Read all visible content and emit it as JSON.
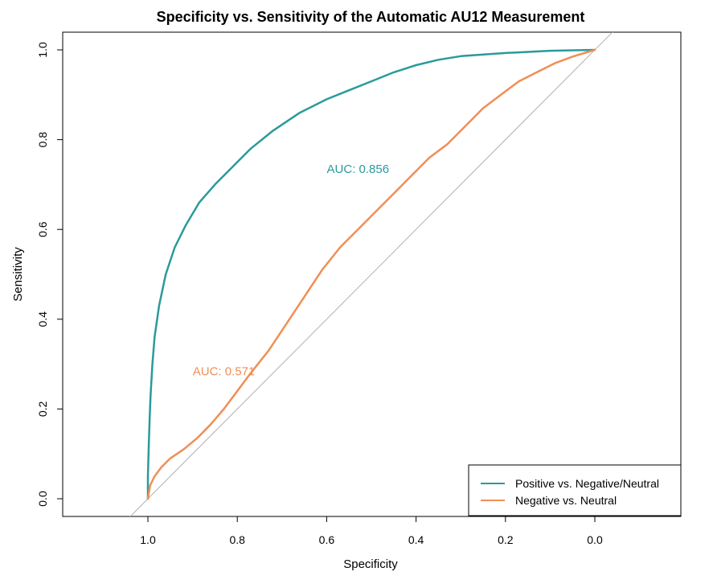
{
  "chart_data": {
    "type": "line",
    "title": "Specificity vs. Sensitivity of the Automatic AU12 Measurement",
    "xlabel": "Specificity",
    "ylabel": "Sensitivity",
    "xlim": [
      1.2,
      -0.19
    ],
    "ylim": [
      -0.04,
      1.04
    ],
    "x_reversed": true,
    "x_ticks": [
      "1.0",
      "0.8",
      "0.6",
      "0.4",
      "0.2",
      "0.0"
    ],
    "x_tick_values": [
      1.0,
      0.8,
      0.6,
      0.4,
      0.2,
      0.0
    ],
    "y_ticks": [
      "0.0",
      "0.2",
      "0.4",
      "0.6",
      "0.8",
      "1.0"
    ],
    "y_tick_values": [
      0.0,
      0.2,
      0.4,
      0.6,
      0.8,
      1.0
    ],
    "grid": false,
    "legend_position": "bottom-right",
    "reference_line": {
      "color": "#b0b0b0",
      "x": [
        1.04,
        -0.04
      ],
      "y": [
        -0.04,
        1.04
      ]
    },
    "series": [
      {
        "name": "Positive vs. Negative/Neutral",
        "color": "#2b9a9a",
        "specificity": [
          1.0,
          1.0,
          0.998,
          0.996,
          0.994,
          0.99,
          0.985,
          0.975,
          0.96,
          0.94,
          0.915,
          0.885,
          0.85,
          0.81,
          0.77,
          0.72,
          0.66,
          0.6,
          0.55,
          0.5,
          0.45,
          0.4,
          0.35,
          0.3,
          0.2,
          0.1,
          0.0
        ],
        "sensitivity": [
          0.0,
          0.05,
          0.12,
          0.18,
          0.23,
          0.3,
          0.36,
          0.43,
          0.5,
          0.56,
          0.61,
          0.66,
          0.7,
          0.74,
          0.78,
          0.82,
          0.86,
          0.89,
          0.91,
          0.93,
          0.95,
          0.966,
          0.978,
          0.986,
          0.993,
          0.998,
          1.0
        ]
      },
      {
        "name": "Negative vs. Neutral",
        "color": "#ef8f55",
        "specificity": [
          1.0,
          0.995,
          0.985,
          0.97,
          0.95,
          0.92,
          0.89,
          0.86,
          0.83,
          0.8,
          0.77,
          0.73,
          0.69,
          0.65,
          0.61,
          0.57,
          0.53,
          0.49,
          0.45,
          0.41,
          0.37,
          0.33,
          0.29,
          0.25,
          0.21,
          0.17,
          0.13,
          0.09,
          0.05,
          0.0
        ],
        "sensitivity": [
          0.0,
          0.03,
          0.05,
          0.07,
          0.09,
          0.11,
          0.135,
          0.165,
          0.2,
          0.24,
          0.28,
          0.33,
          0.39,
          0.45,
          0.51,
          0.56,
          0.6,
          0.64,
          0.68,
          0.72,
          0.76,
          0.79,
          0.83,
          0.87,
          0.9,
          0.93,
          0.95,
          0.97,
          0.985,
          1.0
        ]
      }
    ],
    "annotations": [
      {
        "text": "AUC: 0.856",
        "x": 0.53,
        "y": 0.735,
        "color": "#2b9a9a"
      },
      {
        "text": "AUC: 0.571",
        "x": 0.83,
        "y": 0.284,
        "color": "#ef8f55"
      }
    ]
  }
}
